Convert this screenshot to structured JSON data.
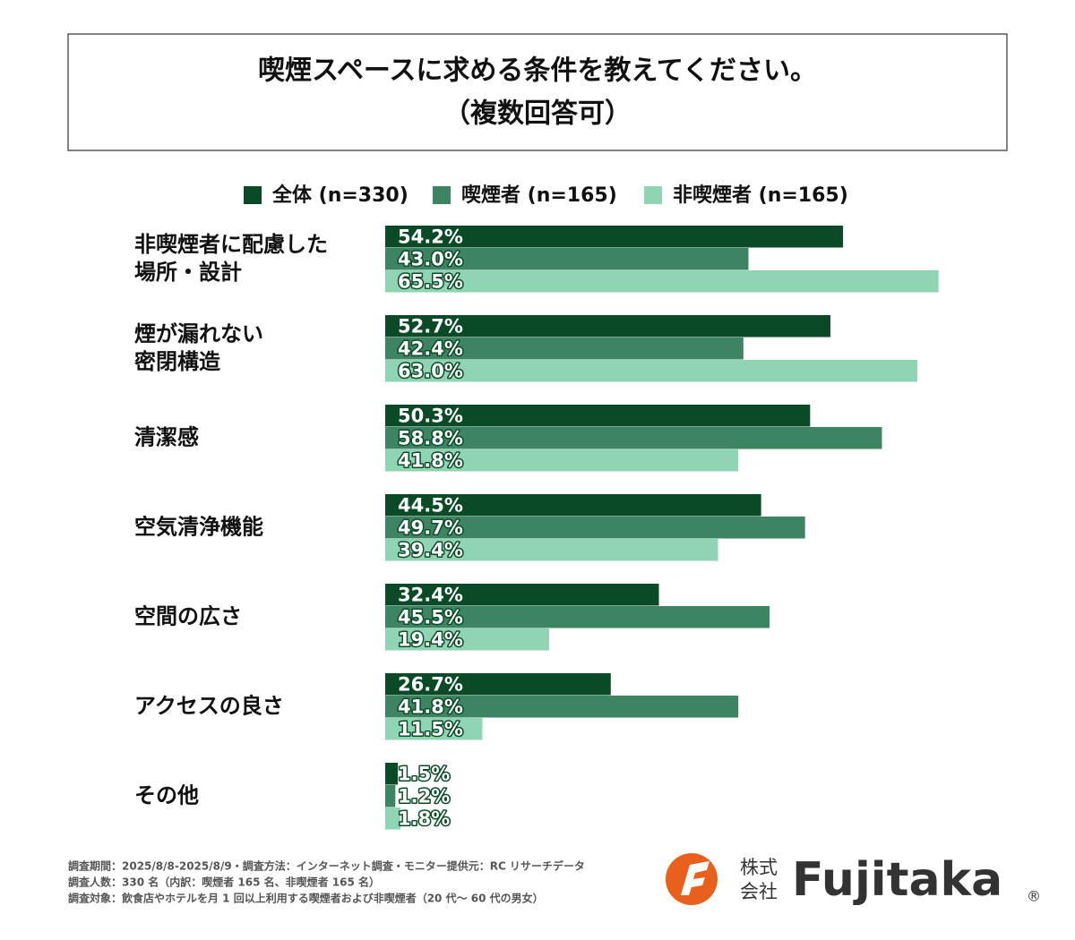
{
  "chart_data": {
    "type": "hbar",
    "title": "喫煙スペースに求める条件を教えてください。",
    "subtitle": "（複数回答可）",
    "categories": [
      "非喫煙者に配慮した\n場所・設計",
      "煙が漏れない\n密閉構造",
      "清潔感",
      "空気清浄機能",
      "空間の広さ",
      "アクセスの良さ",
      "その他"
    ],
    "series": [
      {
        "name": "全体 (n=330)",
        "color": "#0b4a26",
        "values": [
          54.2,
          52.7,
          50.3,
          44.5,
          32.4,
          26.7,
          1.5
        ],
        "value_labels": [
          "54.2%",
          "52.7%",
          "50.3%",
          "44.5%",
          "32.4%",
          "26.7%",
          "1.5%"
        ]
      },
      {
        "name": "喫煙者 (n=165)",
        "color": "#3d8462",
        "values": [
          43.0,
          42.4,
          58.8,
          49.7,
          45.5,
          41.8,
          1.2
        ],
        "value_labels": [
          "43.0%",
          "42.4%",
          "58.8%",
          "49.7%",
          "45.5%",
          "41.8%",
          "1.2%"
        ]
      },
      {
        "name": "非喫煙者 (n=165)",
        "color": "#8fd4b3",
        "values": [
          65.5,
          63.0,
          41.8,
          39.4,
          19.4,
          11.5,
          1.8
        ],
        "value_labels": [
          "65.5%",
          "63.0%",
          "41.8%",
          "39.4%",
          "19.4%",
          "11.5%",
          "1.8%"
        ]
      }
    ]
  },
  "footer": {
    "notes": [
      "調査期間：2025/8/8-2025/8/9・調査方法：インターネット調査・モニター提供元：RC リサーチデータ",
      "調査人数：330 名（内訳：喫煙者 165 名、非喫煙者 165 名）",
      "調査対象：飲食店やホテルを月 1 回以上利用する喫煙者および非喫煙者（20 代～ 60 代の男女）"
    ],
    "logo": {
      "kind1": "株式",
      "kind2": "会社",
      "name": "Fujitaka",
      "mark": "®"
    }
  }
}
